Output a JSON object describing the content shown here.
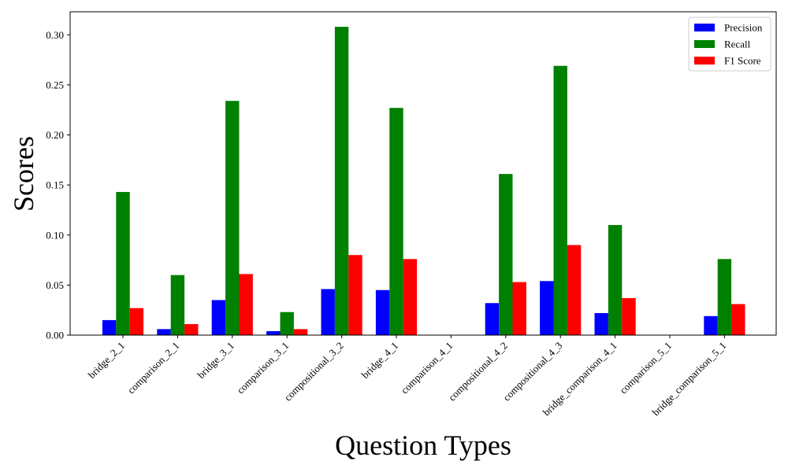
{
  "chart_data": {
    "type": "bar",
    "title": "",
    "xlabel": "Question Types",
    "ylabel": "Scores",
    "ylim": [
      0,
      0.323
    ],
    "yticks": [
      "0.00",
      "0.05",
      "0.10",
      "0.15",
      "0.20",
      "0.25",
      "0.30"
    ],
    "categories": [
      "bridge_2_1",
      "comparison_2_1",
      "bridge_3_1",
      "comparison_3_1",
      "compositional_3_2",
      "bridge_4_1",
      "comparison_4_1",
      "compositional_4_2",
      "compositional_4_3",
      "bridge_comparison_4_1",
      "comparison_5_1",
      "bridge_comparison_5_1"
    ],
    "series": [
      {
        "name": "Precision",
        "color": "#0000ff",
        "values": [
          0.015,
          0.006,
          0.035,
          0.004,
          0.046,
          0.045,
          0.0,
          0.032,
          0.054,
          0.022,
          0.0,
          0.019
        ]
      },
      {
        "name": "Recall",
        "color": "#008000",
        "values": [
          0.143,
          0.06,
          0.234,
          0.023,
          0.308,
          0.227,
          0.0,
          0.161,
          0.269,
          0.11,
          0.0,
          0.076
        ]
      },
      {
        "name": "F1 Score",
        "color": "#ff0000",
        "values": [
          0.027,
          0.011,
          0.061,
          0.006,
          0.08,
          0.076,
          0.0,
          0.053,
          0.09,
          0.037,
          0.0,
          0.031
        ]
      }
    ],
    "legend_position": "top-right",
    "grid": false
  }
}
